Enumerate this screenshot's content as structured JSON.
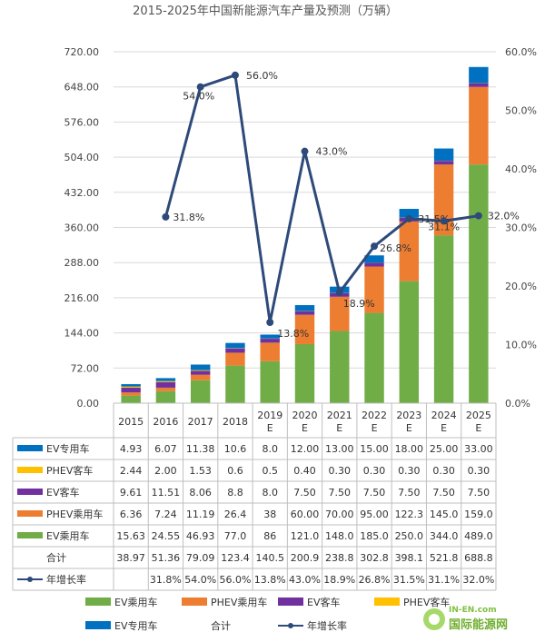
{
  "chart_data": {
    "type": "bar",
    "title": "2015-2025年中国新能源汽车产量及预测（万辆）",
    "categories": [
      "2015",
      "2016",
      "2017",
      "2018",
      "2019\nE",
      "2020\nE",
      "2021\nE",
      "2022\nE",
      "2023\nE",
      "2024\nE",
      "2025\nE"
    ],
    "ylim": [
      0,
      720
    ],
    "yticks": [
      "0.00",
      "72.00",
      "144.00",
      "216.00",
      "288.00",
      "360.00",
      "432.00",
      "504.00",
      "576.00",
      "648.00",
      "720.00"
    ],
    "y2lim": [
      0,
      60
    ],
    "y2ticks": [
      "0.0%",
      "10.0%",
      "20.0%",
      "30.0%",
      "40.0%",
      "50.0%",
      "60.0%"
    ],
    "stack_series": [
      {
        "name": "EV乘用车",
        "color": "#70ad47",
        "values": [
          15.63,
          24.55,
          46.93,
          77.0,
          86,
          121.0,
          148.0,
          185.0,
          250.0,
          344.0,
          489.0
        ],
        "labels": [
          "15.63",
          "24.55",
          "46.93",
          "77.0",
          "86",
          "121.0",
          "148.0",
          "185.0",
          "250.0",
          "344.0",
          "489.0"
        ]
      },
      {
        "name": "PHEV乘用车",
        "color": "#ed7d31",
        "values": [
          6.36,
          7.24,
          11.19,
          26.4,
          38,
          60.0,
          70.0,
          95.0,
          122.3,
          145.0,
          159.0
        ],
        "labels": [
          "6.36",
          "7.24",
          "11.19",
          "26.4",
          "38",
          "60.00",
          "70.00",
          "95.00",
          "122.3",
          "145.0",
          "159.0"
        ]
      },
      {
        "name": "EV客车",
        "color": "#7030a0",
        "values": [
          9.61,
          11.51,
          8.06,
          8.8,
          8.0,
          7.5,
          7.5,
          7.5,
          7.5,
          7.5,
          7.5
        ],
        "labels": [
          "9.61",
          "11.51",
          "8.06",
          "8.8",
          "8.0",
          "7.50",
          "7.50",
          "7.50",
          "7.50",
          "7.50",
          "7.50"
        ]
      },
      {
        "name": "PHEV客车",
        "color": "#ffc000",
        "values": [
          2.44,
          2.0,
          1.53,
          0.6,
          0.5,
          0.4,
          0.3,
          0.3,
          0.3,
          0.3,
          0.3
        ],
        "labels": [
          "2.44",
          "2.00",
          "1.53",
          "0.6",
          "0.5",
          "0.40",
          "0.30",
          "0.30",
          "0.30",
          "0.30",
          "0.30"
        ]
      },
      {
        "name": "EV专用车",
        "color": "#0070c0",
        "values": [
          4.93,
          6.07,
          11.38,
          10.6,
          8.0,
          12.0,
          13.0,
          15.0,
          18.0,
          25.0,
          33.0
        ],
        "labels": [
          "4.93",
          "6.07",
          "11.38",
          "10.6",
          "8.0",
          "12.00",
          "13.00",
          "15.00",
          "18.00",
          "25.00",
          "33.00"
        ]
      }
    ],
    "total": {
      "name": "合计",
      "values": [
        38.97,
        51.36,
        79.09,
        123.4,
        140.5,
        200.9,
        238.8,
        302.8,
        398.1,
        521.8,
        688.8
      ],
      "labels": [
        "38.97",
        "51.36",
        "79.09",
        "123.4",
        "140.5",
        "200.9",
        "238.8",
        "302.8",
        "398.1",
        "521.8",
        "688.8"
      ]
    },
    "growth": {
      "name": "年增长率",
      "color": "#2e4a7a",
      "values": [
        null,
        31.8,
        54.0,
        56.0,
        13.8,
        43.0,
        18.9,
        26.8,
        31.5,
        31.1,
        32.0
      ],
      "labels": [
        "",
        "31.8%",
        "54.0%",
        "56.0%",
        "13.8%",
        "43.0%",
        "18.9%",
        "26.8%",
        "31.5%",
        "31.1%",
        "32.0%"
      ]
    },
    "table_row_order": [
      "EV专用车",
      "PHEV客车",
      "EV客车",
      "PHEV乘用车",
      "EV乘用车",
      "合计",
      "年增长率"
    ],
    "legend_order": [
      "EV乘用车",
      "PHEV乘用车",
      "EV客车",
      "PHEV客车",
      "EV专用车",
      "合计",
      "年增长率"
    ]
  },
  "watermark": {
    "line1": "IN-EN.com",
    "line2": "国际能源网"
  }
}
